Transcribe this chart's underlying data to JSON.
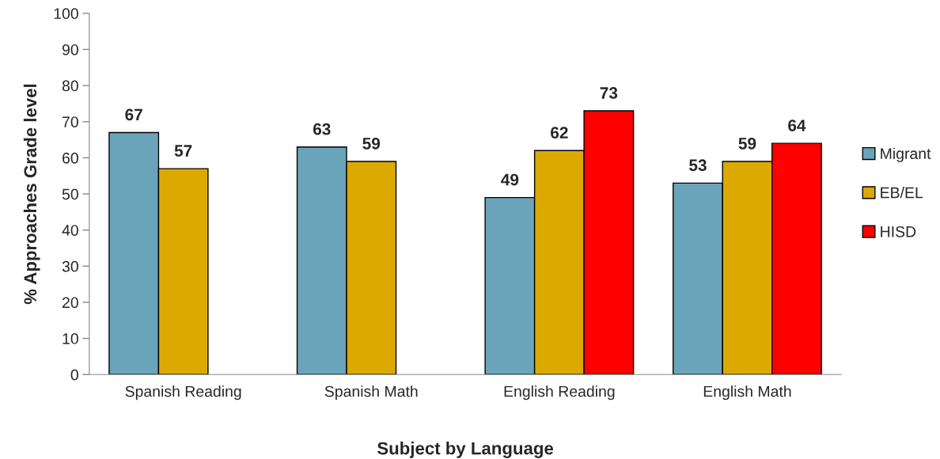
{
  "chart_data": {
    "type": "bar",
    "xlabel": "Subject by Language",
    "ylabel": "% Approaches Grade level",
    "categories": [
      "Spanish Reading",
      "Spanish Math",
      "English Reading",
      "English Math"
    ],
    "series": [
      {
        "name": "Migrant",
        "color": "#6aa4bb",
        "values": [
          67,
          63,
          49,
          53
        ]
      },
      {
        "name": "EB/EL",
        "color": "#dca900",
        "values": [
          57,
          59,
          62,
          59
        ]
      },
      {
        "name": "HISD",
        "color": "#ff0000",
        "values": [
          null,
          null,
          73,
          64
        ]
      }
    ],
    "ylim": [
      0,
      100
    ],
    "yticks": [
      0,
      10,
      20,
      30,
      40,
      50,
      60,
      70,
      80,
      90,
      100
    ],
    "grid": false,
    "legend": "right",
    "data_labels": true
  }
}
